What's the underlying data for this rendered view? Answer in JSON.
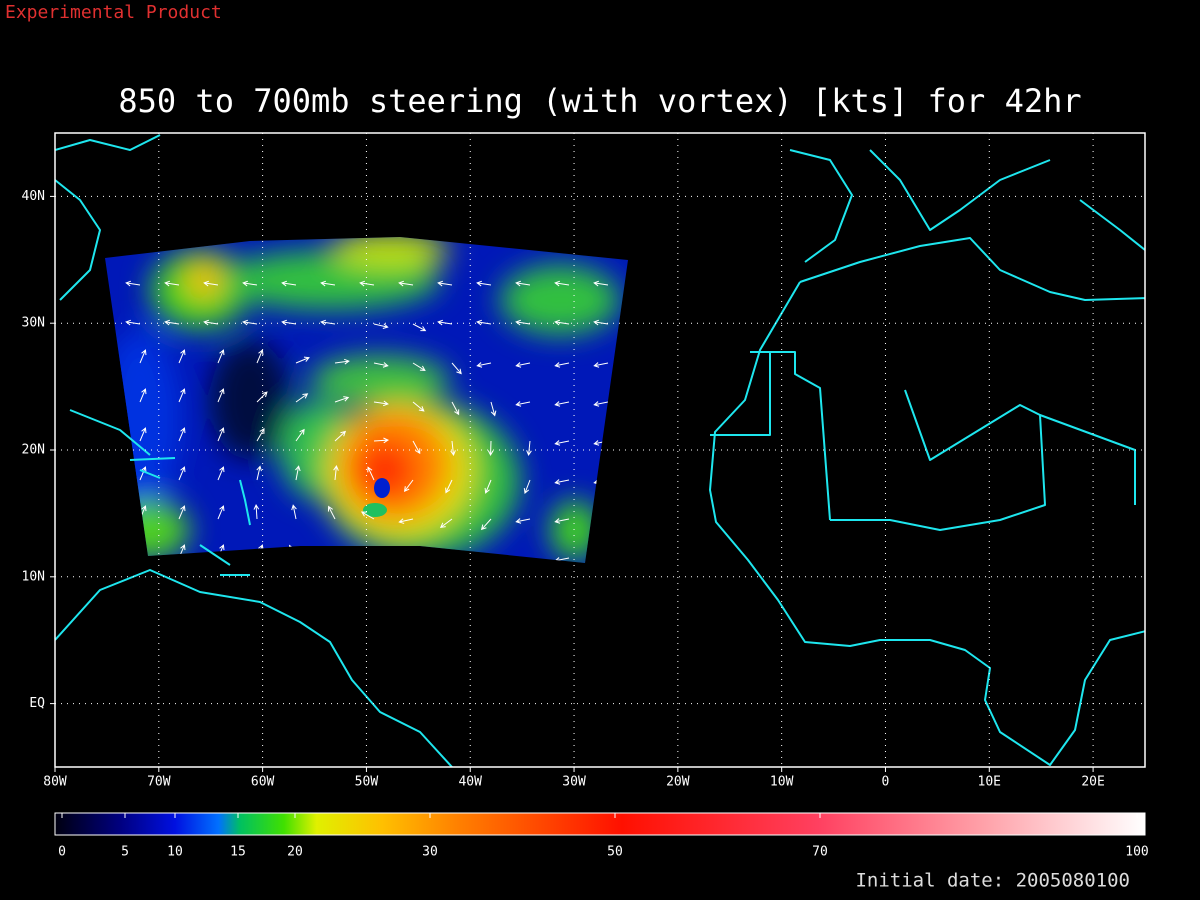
{
  "header": {
    "note": "Experimental Product"
  },
  "map": {
    "title": "850 to 700mb steering (with vortex) [kts] for 42hr",
    "xlim": [
      -80,
      25
    ],
    "ylim": [
      -5,
      45
    ],
    "xticks": [
      {
        "value": -80,
        "label": "80W"
      },
      {
        "value": -70,
        "label": "70W"
      },
      {
        "value": -60,
        "label": "60W"
      },
      {
        "value": -50,
        "label": "50W"
      },
      {
        "value": -40,
        "label": "40W"
      },
      {
        "value": -30,
        "label": "30W"
      },
      {
        "value": -20,
        "label": "20W"
      },
      {
        "value": -10,
        "label": "10W"
      },
      0,
      {
        "value": 10,
        "label": "10E"
      },
      {
        "value": 20,
        "label": "20E"
      }
    ],
    "yticks": [
      {
        "value": 0,
        "label": "EQ"
      },
      {
        "value": 10,
        "label": "10N"
      },
      {
        "value": 20,
        "label": "20N"
      },
      {
        "value": 30,
        "label": "30N"
      },
      {
        "value": 40,
        "label": "40N"
      }
    ]
  },
  "colorbar": {
    "ticks": [
      0,
      5,
      10,
      15,
      20,
      30,
      50,
      70,
      100
    ]
  },
  "footer": {
    "initial_date": "Initial date: 2005080100"
  }
}
